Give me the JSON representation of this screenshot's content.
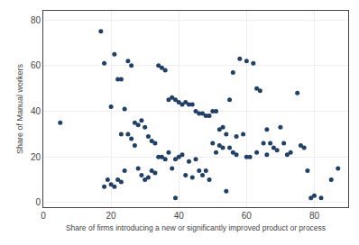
{
  "chart_data": {
    "type": "scatter",
    "x": [
      5,
      17,
      18,
      18,
      19,
      20,
      20,
      21,
      21,
      22,
      22,
      23,
      23,
      23,
      24,
      24,
      25,
      25,
      26,
      26,
      27,
      27,
      28,
      28,
      29,
      29,
      30,
      30,
      31,
      31,
      32,
      32,
      33,
      33,
      34,
      34,
      35,
      35,
      36,
      36,
      37,
      37,
      38,
      38,
      39,
      39,
      39,
      40,
      40,
      41,
      41,
      42,
      42,
      43,
      43,
      44,
      44,
      45,
      45,
      46,
      46,
      47,
      47,
      48,
      48,
      49,
      49,
      50,
      50,
      51,
      51,
      52,
      52,
      53,
      53,
      54,
      54,
      55,
      55,
      56,
      56,
      57,
      57,
      58,
      59,
      60,
      60,
      61,
      62,
      63,
      63,
      64,
      65,
      66,
      66,
      67,
      68,
      69,
      70,
      71,
      72,
      73,
      75,
      76,
      77,
      78,
      79,
      80,
      82,
      85,
      87
    ],
    "values": [
      35,
      75,
      61,
      7,
      10,
      42,
      8,
      65,
      7,
      54,
      10,
      54,
      9,
      30,
      41,
      14,
      62,
      30,
      60,
      28,
      35,
      25,
      34,
      15,
      36,
      12,
      33,
      10,
      29,
      11,
      27,
      14,
      26,
      13,
      60,
      20,
      59,
      20,
      58,
      19,
      45,
      22,
      46,
      15,
      45,
      19,
      2,
      44,
      20,
      43,
      21,
      44,
      12,
      43,
      18,
      43,
      11,
      40,
      19,
      39,
      14,
      39,
      12,
      38,
      14,
      38,
      10,
      40,
      26,
      40,
      22,
      32,
      25,
      33,
      24,
      30,
      5,
      45,
      24,
      57,
      22,
      29,
      21,
      63,
      30,
      62,
      20,
      20,
      61,
      50,
      22,
      49,
      26,
      32,
      21,
      26,
      24,
      23,
      33,
      26,
      21,
      22,
      48,
      25,
      24,
      14,
      2,
      3,
      2,
      10,
      15
    ],
    "color": "#1f4068",
    "xlabel": "Share of firms introducing a new or significantly improved product or process",
    "ylabel": "Share of Manual workers",
    "xlim": [
      0,
      90
    ],
    "ylim": [
      -2,
      84
    ],
    "xticks": [
      0,
      20,
      40,
      60,
      80
    ],
    "yticks": [
      0,
      20,
      40,
      60,
      80
    ],
    "grid": true
  }
}
